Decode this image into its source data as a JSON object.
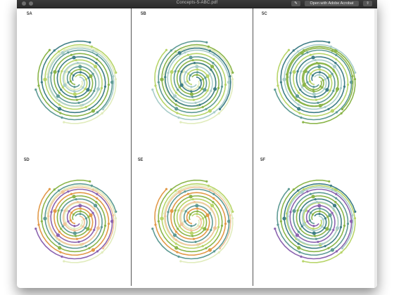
{
  "window": {
    "title": "Concepts-5-ABC.pdf",
    "buttons": {
      "open_with": "Open with Adobe Acrobat"
    }
  },
  "panels": [
    {
      "id": "5A",
      "label": "5A"
    },
    {
      "id": "5B",
      "label": "5B"
    },
    {
      "id": "5C",
      "label": "5C"
    },
    {
      "id": "5D",
      "label": "5D"
    },
    {
      "id": "5E",
      "label": "5E"
    },
    {
      "id": "5F",
      "label": "5F"
    }
  ],
  "colors": {
    "teal": "#5f9b95",
    "dark_teal": "#3f7e86",
    "light_teal": "#a9cdca",
    "green": "#8bb54a",
    "lime": "#b8d56a",
    "pale_lime": "#e1ecbd",
    "purple": "#8c64b0",
    "orange": "#e29a4a",
    "peach": "#f0c49a"
  }
}
